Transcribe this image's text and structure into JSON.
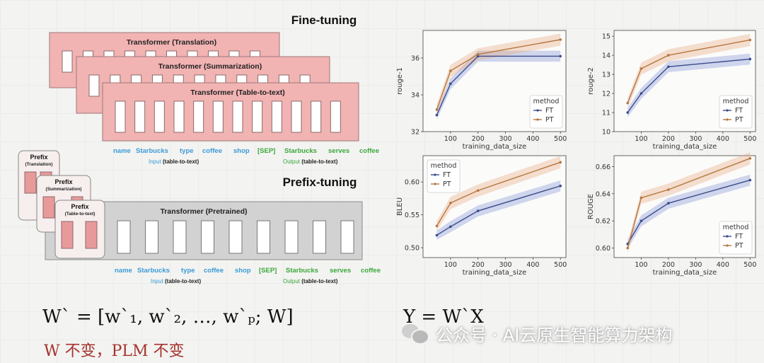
{
  "diagram": {
    "finetune_title": "Fine-tuning",
    "prefixtune_title": "Prefix-tuning",
    "ft_transformers": [
      "Transformer (Translation)",
      "Transformer (Summarization)",
      "Transformer (Table-to-text)"
    ],
    "pt_transformer": "Transformer  (Pretrained)",
    "prefixes": [
      {
        "title": "Prefix",
        "sub": "(Translation)"
      },
      {
        "title": "Prefix",
        "sub": "(Summarization)"
      },
      {
        "title": "Prefix",
        "sub": "(Table-to-text)"
      }
    ],
    "input_tokens": [
      "name",
      "Starbucks",
      "type",
      "coffee",
      "shop"
    ],
    "output_tokens": [
      "[SEP]",
      "Starbucks",
      "serves",
      "coffee"
    ],
    "input_label": "Input",
    "output_label": "Output",
    "task_label": "(table-to-text)"
  },
  "formulas": {
    "left": "W` = [w`₁, w`₂, …, w`ₚ; W]",
    "right": "Y = W`X",
    "note": "W 不变，PLM 不变"
  },
  "watermark": {
    "text": "公众号 · AI云原生智能算力架构",
    "icon": "wechat-icon"
  },
  "colors": {
    "ft": "#3b4c8c",
    "pt": "#b5763e",
    "input_text": "#3a9bd8",
    "output_text": "#3aa83a",
    "pink": "#f2b3b3",
    "grey": "#d2d2d2"
  },
  "chart_data": [
    {
      "type": "line",
      "ylabel": "rouge-1",
      "xlabel": "training_data_size",
      "xlim": [
        0,
        520
      ],
      "ylim": [
        32,
        37.5
      ],
      "xticks": [
        100,
        200,
        300,
        400,
        500
      ],
      "yticks": [
        32,
        34,
        36
      ],
      "legend_title": "method",
      "legend_position": "bottom-right",
      "x": [
        50,
        100,
        200,
        500
      ],
      "series": [
        {
          "name": "FT",
          "values": [
            32.9,
            34.6,
            36.1,
            36.1
          ]
        },
        {
          "name": "PT",
          "values": [
            33.2,
            35.3,
            36.2,
            37.0
          ]
        }
      ]
    },
    {
      "type": "line",
      "ylabel": "rouge-2",
      "xlabel": "training_data_size",
      "xlim": [
        0,
        520
      ],
      "ylim": [
        10,
        15.3
      ],
      "xticks": [
        100,
        200,
        300,
        400,
        500
      ],
      "yticks": [
        10,
        11,
        12,
        13,
        14,
        15
      ],
      "legend_title": "method",
      "legend_position": "bottom-right",
      "x": [
        50,
        100,
        200,
        500
      ],
      "series": [
        {
          "name": "FT",
          "values": [
            11.0,
            12.0,
            13.4,
            13.8
          ]
        },
        {
          "name": "PT",
          "values": [
            11.5,
            13.3,
            14.0,
            14.8
          ]
        }
      ]
    },
    {
      "type": "line",
      "ylabel": "BLEU",
      "xlabel": "training_data_size",
      "xlim": [
        0,
        520
      ],
      "ylim": [
        0.485,
        0.64
      ],
      "xticks": [
        100,
        200,
        300,
        400,
        500
      ],
      "yticks": [
        0.5,
        0.55,
        0.6
      ],
      "legend_title": "method",
      "legend_position": "top-left",
      "x": [
        50,
        100,
        200,
        500
      ],
      "series": [
        {
          "name": "FT",
          "values": [
            0.519,
            0.532,
            0.556,
            0.594
          ]
        },
        {
          "name": "PT",
          "values": [
            0.533,
            0.568,
            0.587,
            0.63
          ]
        }
      ]
    },
    {
      "type": "line",
      "ylabel": "ROUGE",
      "xlabel": "training_data_size",
      "xlim": [
        0,
        520
      ],
      "ylim": [
        0.593,
        0.668
      ],
      "xticks": [
        100,
        200,
        300,
        400,
        500
      ],
      "yticks": [
        0.6,
        0.62,
        0.64,
        0.66
      ],
      "legend_title": "method",
      "legend_position": "bottom-right",
      "x": [
        50,
        100,
        200,
        500
      ],
      "series": [
        {
          "name": "FT",
          "values": [
            0.603,
            0.62,
            0.633,
            0.65
          ]
        },
        {
          "name": "PT",
          "values": [
            0.6,
            0.637,
            0.643,
            0.666
          ]
        }
      ]
    }
  ]
}
